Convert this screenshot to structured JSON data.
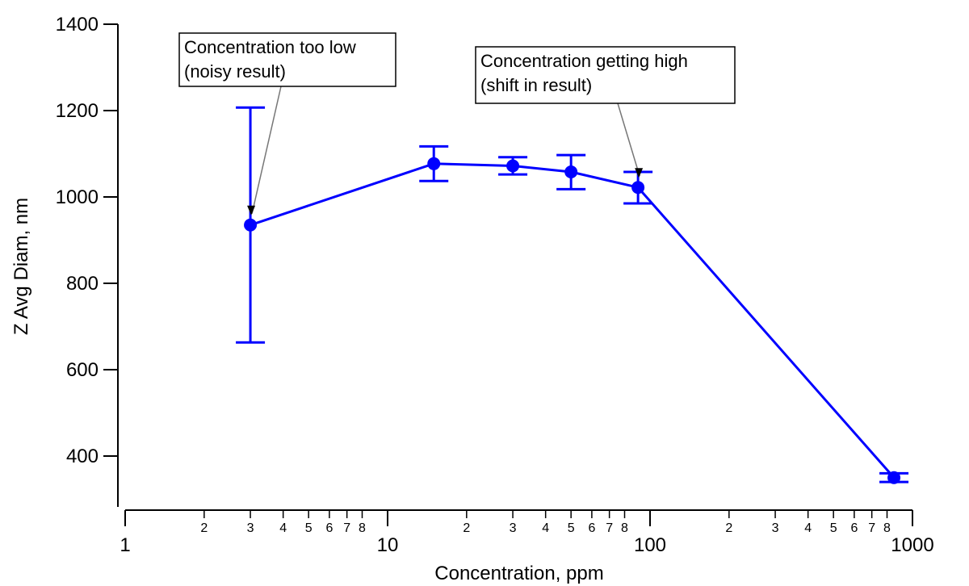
{
  "chart_data": {
    "type": "line",
    "title": "",
    "xlabel": "Concentration, ppm",
    "ylabel": "Z Avg Diam, nm",
    "xscale": "log",
    "xlim": [
      1,
      1000
    ],
    "ylim": [
      290,
      1400
    ],
    "grid": false,
    "legend": "none",
    "series": [
      {
        "color": "#0000ff",
        "x": [
          3,
          15,
          30,
          50,
          90,
          850
        ],
        "y": [
          935,
          1077,
          1072,
          1058,
          1022,
          350
        ],
        "error_low": [
          663,
          1037,
          1052,
          1018,
          985,
          340
        ],
        "error_high": [
          1207,
          1117,
          1092,
          1097,
          1058,
          360
        ]
      }
    ],
    "x_major_ticks": [
      {
        "value": 1,
        "label": "1"
      },
      {
        "value": 10,
        "label": "10"
      },
      {
        "value": 100,
        "label": "100"
      },
      {
        "value": 1000,
        "label": "1000"
      }
    ],
    "x_minor_ticks": [
      {
        "value": 2,
        "label": "2"
      },
      {
        "value": 3,
        "label": "3"
      },
      {
        "value": 4,
        "label": "4"
      },
      {
        "value": 5,
        "label": "5"
      },
      {
        "value": 6,
        "label": "6"
      },
      {
        "value": 7,
        "label": "7"
      },
      {
        "value": 8,
        "label": "8"
      },
      {
        "value": 20,
        "label": "2"
      },
      {
        "value": 30,
        "label": "3"
      },
      {
        "value": 40,
        "label": "4"
      },
      {
        "value": 50,
        "label": "5"
      },
      {
        "value": 60,
        "label": "6"
      },
      {
        "value": 70,
        "label": "7"
      },
      {
        "value": 80,
        "label": "8"
      },
      {
        "value": 200,
        "label": "2"
      },
      {
        "value": 300,
        "label": "3"
      },
      {
        "value": 400,
        "label": "4"
      },
      {
        "value": 500,
        "label": "5"
      },
      {
        "value": 600,
        "label": "6"
      },
      {
        "value": 700,
        "label": "7"
      },
      {
        "value": 800,
        "label": "8"
      }
    ],
    "y_ticks": [
      {
        "value": 400,
        "label": "400"
      },
      {
        "value": 600,
        "label": "600"
      },
      {
        "value": 800,
        "label": "800"
      },
      {
        "value": 1000,
        "label": "1000"
      },
      {
        "value": 1200,
        "label": "1200"
      },
      {
        "value": 1400,
        "label": "1400"
      }
    ],
    "annotations": [
      {
        "lines": [
          "Concentration too low",
          "(noisy result)"
        ],
        "target": {
          "x": 3,
          "y": 935
        }
      },
      {
        "lines": [
          "Concentration getting high",
          "(shift in result)"
        ],
        "target": {
          "x": 90,
          "y": 1022
        }
      }
    ]
  }
}
